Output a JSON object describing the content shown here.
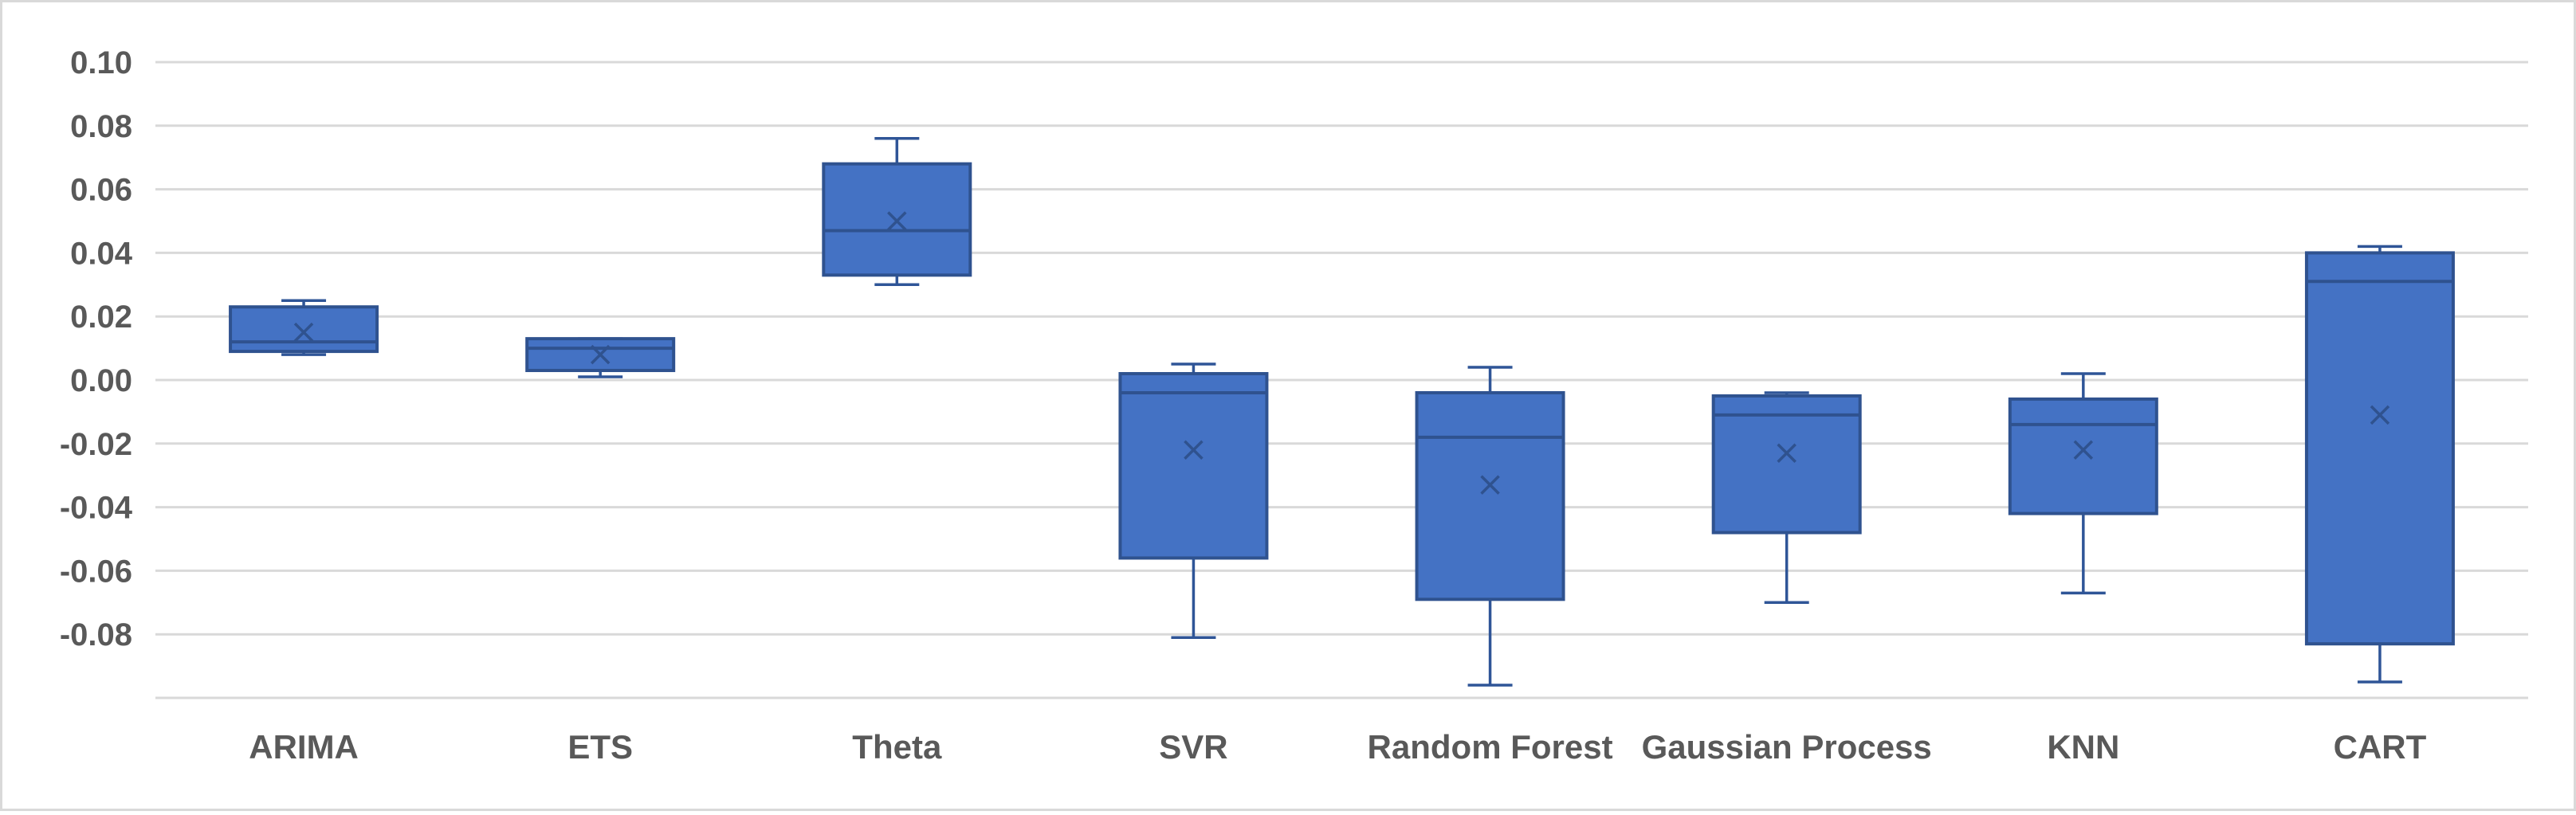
{
  "chart_data": {
    "type": "box",
    "title": "",
    "xlabel": "",
    "ylabel": "",
    "ylim": [
      -0.1,
      0.1
    ],
    "yticks": [
      0.1,
      0.08,
      0.06,
      0.04,
      0.02,
      0.0,
      -0.02,
      -0.04,
      -0.06,
      -0.08
    ],
    "ytick_labels": [
      "0.10",
      "0.08",
      "0.06",
      "0.04",
      "0.02",
      "0.00",
      "-0.02",
      "-0.04",
      "-0.06",
      "-0.08"
    ],
    "grid": true,
    "legend": "none",
    "colors": {
      "box_fill": "#4472C4",
      "box_stroke": "#2F528F",
      "whisker": "#2F5597",
      "gridline": "#D9D9D9",
      "axis_text": "#595959",
      "frame": "#D9D9D9"
    },
    "categories": [
      "ARIMA",
      "ETS",
      "Theta",
      "SVR",
      "Random Forest",
      "Gaussian Process",
      "KNN",
      "CART"
    ],
    "boxes": [
      {
        "name": "ARIMA",
        "min": 0.008,
        "q1": 0.009,
        "median": 0.012,
        "q3": 0.023,
        "max": 0.025,
        "mean": 0.015
      },
      {
        "name": "ETS",
        "min": 0.001,
        "q1": 0.003,
        "median": 0.01,
        "q3": 0.013,
        "max": 0.013,
        "mean": 0.008
      },
      {
        "name": "Theta",
        "min": 0.03,
        "q1": 0.033,
        "median": 0.047,
        "q3": 0.068,
        "max": 0.076,
        "mean": 0.05
      },
      {
        "name": "SVR",
        "min": -0.081,
        "q1": -0.056,
        "median": -0.004,
        "q3": 0.002,
        "max": 0.005,
        "mean": -0.022
      },
      {
        "name": "Random Forest",
        "min": -0.096,
        "q1": -0.069,
        "median": -0.018,
        "q3": -0.004,
        "max": 0.004,
        "mean": -0.033
      },
      {
        "name": "Gaussian Process",
        "min": -0.07,
        "q1": -0.048,
        "median": -0.011,
        "q3": -0.005,
        "max": -0.004,
        "mean": -0.023
      },
      {
        "name": "KNN",
        "min": -0.067,
        "q1": -0.042,
        "median": -0.014,
        "q3": -0.006,
        "max": 0.002,
        "mean": -0.022
      },
      {
        "name": "CART",
        "min": -0.095,
        "q1": -0.083,
        "median": 0.031,
        "q3": 0.04,
        "max": 0.042,
        "mean": -0.011
      }
    ]
  }
}
